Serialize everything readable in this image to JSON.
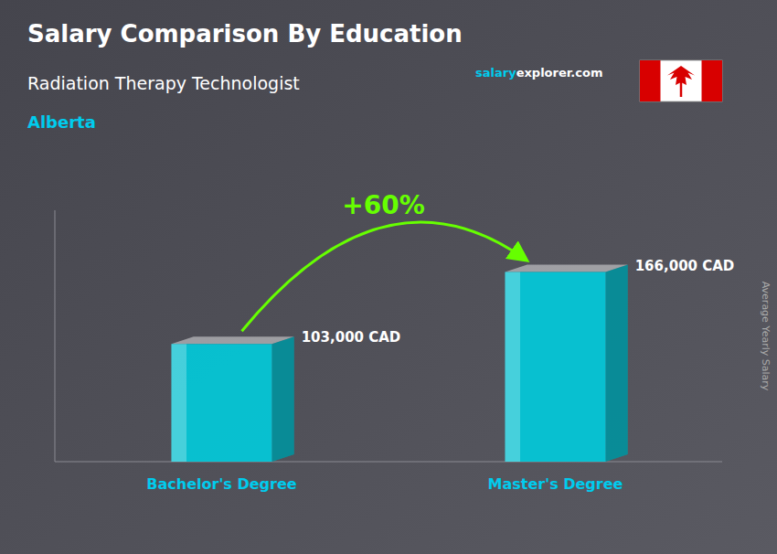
{
  "chart_data": {
    "type": "bar",
    "title": "Salary Comparison By Education",
    "subtitle": "Radiation Therapy Technologist",
    "location": "Alberta",
    "website": [
      "salary",
      "explorer.com"
    ],
    "ylabel": "Average Yearly Salary",
    "categories": [
      "Bachelor's Degree",
      "Master's Degree"
    ],
    "values": [
      103000,
      166000
    ],
    "value_labels": [
      "103,000 CAD",
      "166,000 CAD"
    ],
    "data_labels": true,
    "annotation": "+60%",
    "color": "#00CCDD",
    "ylim": [
      0,
      220000
    ],
    "tick_labels": false,
    "grid": false
  }
}
